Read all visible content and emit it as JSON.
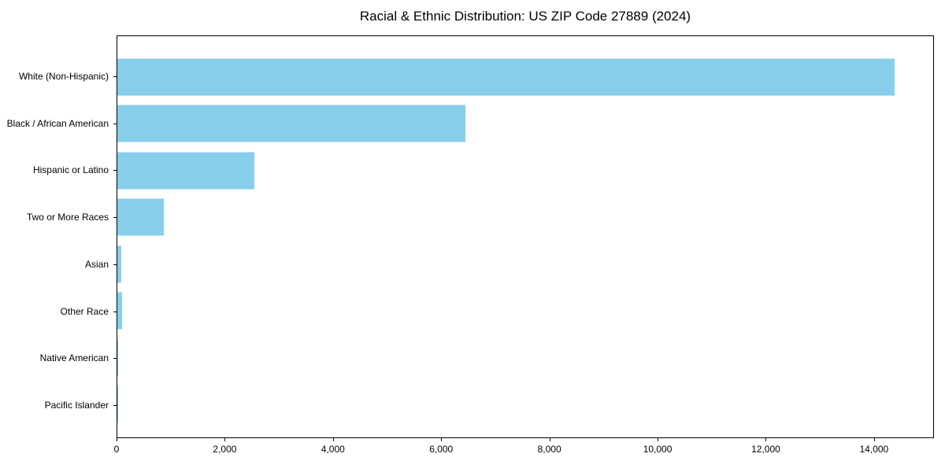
{
  "figure": {
    "background_color": "#ffffff",
    "frame_color": "#000000",
    "text_color": "#000000"
  },
  "chart_data": {
    "type": "bar",
    "orientation": "horizontal",
    "title": "Racial & Ethnic Distribution: US ZIP Code 27889 (2024)",
    "xlabel": "",
    "ylabel": "",
    "categories": [
      "White (Non-Hispanic)",
      "Black / African American",
      "Hispanic or Latino",
      "Two or More Races",
      "Asian",
      "Other Race",
      "Native American",
      "Pacific Islander"
    ],
    "values": [
      14395,
      6445,
      2540,
      860,
      70,
      88,
      15,
      3
    ],
    "bar_color": "#87CEEB",
    "xlim": [
      0,
      15108
    ],
    "x_ticks": [
      0,
      2000,
      4000,
      6000,
      8000,
      10000,
      12000,
      14000
    ],
    "x_tick_labels": [
      "0",
      "2,000",
      "4,000",
      "6,000",
      "8,000",
      "10,000",
      "12,000",
      "14,000"
    ],
    "grid": false,
    "legend": "none"
  }
}
